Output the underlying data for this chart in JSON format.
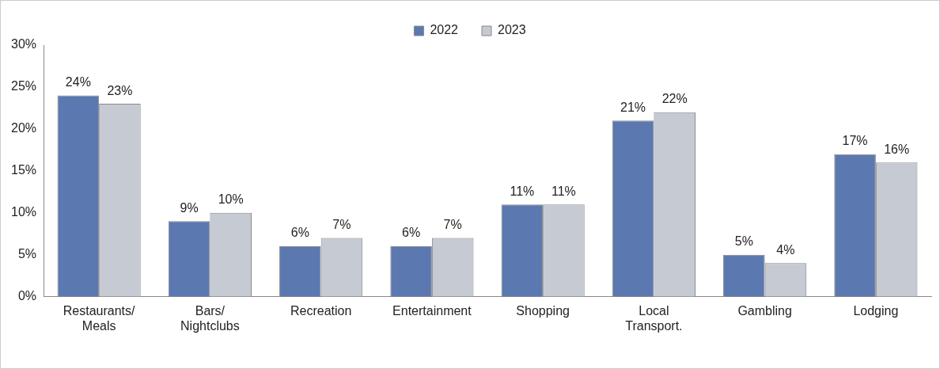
{
  "chart_data": {
    "type": "bar",
    "categories": [
      "Restaurants/\nMeals",
      "Bars/\nNightclubs",
      "Recreation",
      "Entertainment",
      "Shopping",
      "Local\nTransport.",
      "Gambling",
      "Lodging"
    ],
    "series": [
      {
        "name": "2022",
        "color": "#5b78b0",
        "values": [
          24,
          9,
          6,
          6,
          11,
          21,
          5,
          17
        ],
        "value_labels": [
          "24%",
          "9%",
          "6%",
          "6%",
          "11%",
          "21%",
          "5%",
          "17%"
        ]
      },
      {
        "name": "2023",
        "color": "#c5cad3",
        "values": [
          23,
          10,
          7,
          7,
          11,
          22,
          4,
          16
        ],
        "value_labels": [
          "23%",
          "10%",
          "7%",
          "7%",
          "11%",
          "22%",
          "4%",
          "16%"
        ]
      }
    ],
    "ylim": [
      0,
      30
    ],
    "yticks": [
      {
        "value": 0,
        "label": "0%"
      },
      {
        "value": 5,
        "label": "5%"
      },
      {
        "value": 10,
        "label": "10%"
      },
      {
        "value": 15,
        "label": "15%"
      },
      {
        "value": 20,
        "label": "20%"
      },
      {
        "value": 25,
        "label": "25%"
      },
      {
        "value": 30,
        "label": "30%"
      }
    ],
    "grid": false,
    "legend": "top"
  }
}
